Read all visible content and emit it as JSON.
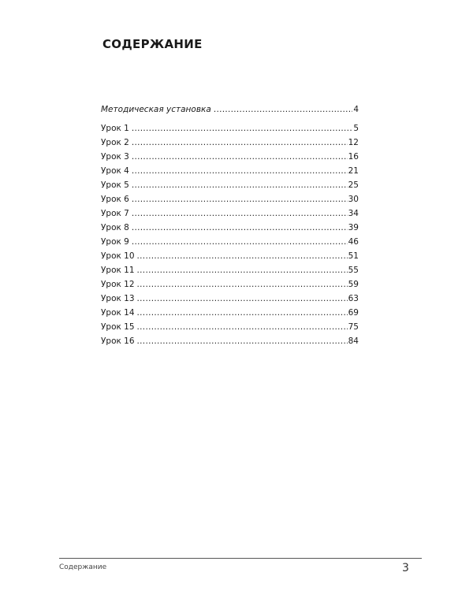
{
  "title": "СОДЕРЖАНИЕ",
  "toc": [
    {
      "label": "Методическая установка",
      "page": "4",
      "italic": true
    },
    {
      "label": "Урок 1",
      "page": "5"
    },
    {
      "label": "Урок 2",
      "page": "12"
    },
    {
      "label": "Урок 3",
      "page": "16"
    },
    {
      "label": "Урок 4",
      "page": "21"
    },
    {
      "label": "Урок 5",
      "page": "25"
    },
    {
      "label": "Урок 6",
      "page": "30"
    },
    {
      "label": "Урок 7",
      "page": "34"
    },
    {
      "label": "Урок 8",
      "page": "39"
    },
    {
      "label": "Урок 9",
      "page": "46"
    },
    {
      "label": "Урок 10",
      "page": "51"
    },
    {
      "label": "Урок 11",
      "page": "55"
    },
    {
      "label": "Урок 12",
      "page": "59"
    },
    {
      "label": "Урок 13",
      "page": "63"
    },
    {
      "label": "Урок 14",
      "page": "69"
    },
    {
      "label": "Урок 15",
      "page": "75"
    },
    {
      "label": "Урок 16",
      "page": "84"
    }
  ],
  "footer": {
    "section": "Содержание",
    "page_number": "3"
  }
}
